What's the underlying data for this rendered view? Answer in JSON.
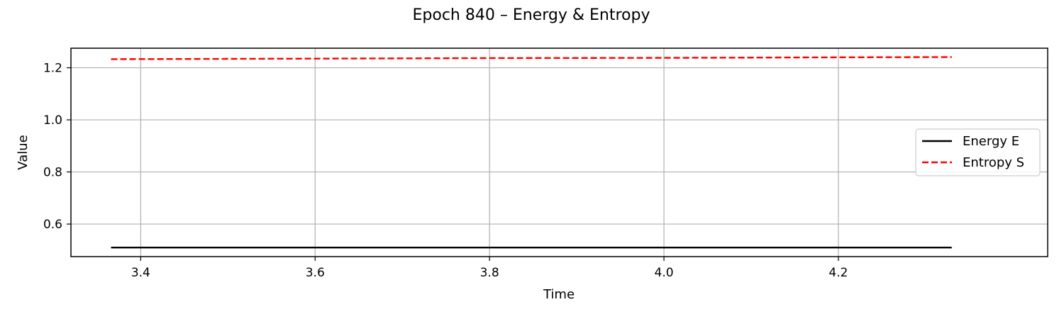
{
  "chart_data": {
    "type": "line",
    "title": "Epoch 840 – Energy & Entropy",
    "xlabel": "Time",
    "ylabel": "Value",
    "xlim": [
      3.32,
      4.44
    ],
    "ylim": [
      0.475,
      1.275
    ],
    "xticks": [
      3.4,
      3.6,
      3.8,
      4.0,
      4.2
    ],
    "yticks": [
      0.6,
      0.8,
      1.0,
      1.2
    ],
    "xtick_labels": [
      "3.4",
      "3.6",
      "3.8",
      "4.0",
      "4.2"
    ],
    "ytick_labels": [
      "0.6",
      "0.8",
      "1.0",
      "1.2"
    ],
    "grid": true,
    "legend_position": "center-right",
    "series": [
      {
        "name": "Energy E",
        "color": "#000000",
        "style": "solid",
        "x": [
          3.366,
          3.6,
          3.8,
          4.0,
          4.2,
          4.33
        ],
        "y": [
          0.51,
          0.51,
          0.51,
          0.51,
          0.51,
          0.51
        ]
      },
      {
        "name": "Entropy S",
        "color": "#ff0000",
        "style": "dashed",
        "x": [
          3.366,
          3.6,
          3.8,
          4.0,
          4.2,
          4.33
        ],
        "y": [
          1.233,
          1.235,
          1.237,
          1.238,
          1.24,
          1.241
        ]
      }
    ]
  }
}
